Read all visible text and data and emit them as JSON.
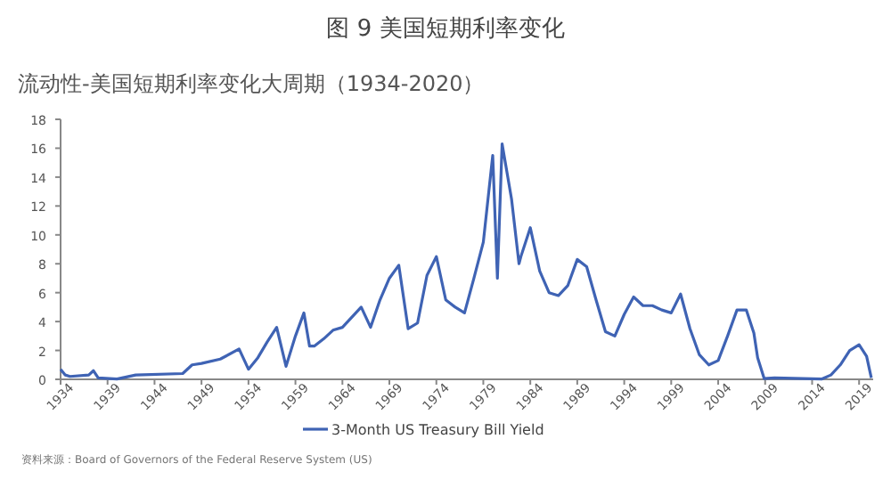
{
  "chart_data": {
    "type": "line",
    "title": "图 9 美国短期利率变化",
    "subtitle": "流动性-美国短期利率变化大周期（1934-2020）",
    "x": [
      1934,
      1934.5,
      1935,
      1937,
      1937.5,
      1938,
      1940,
      1942,
      1947,
      1948,
      1949,
      1951,
      1953,
      1954,
      1955,
      1956,
      1957,
      1958,
      1959,
      1959.9,
      1960.5,
      1961,
      1962,
      1963,
      1964,
      1966,
      1967,
      1968,
      1969,
      1970,
      1971,
      1972,
      1973,
      1974,
      1975,
      1976,
      1977,
      1978,
      1979,
      1980,
      1980.5,
      1981,
      1982,
      1982.8,
      1983,
      1984,
      1985,
      1986,
      1987,
      1988,
      1989,
      1990,
      1991,
      1992,
      1993,
      1994,
      1995,
      1996,
      1997,
      1998,
      1999,
      2000,
      2001,
      2002,
      2003,
      2004,
      2005,
      2006,
      2007,
      2007.8,
      2008.2,
      2008.9,
      2010,
      2015,
      2016,
      2017,
      2018,
      2019,
      2019.8,
      2020.3
    ],
    "series": [
      {
        "name": "3-Month US Treasury Bill Yield",
        "color": "#3f63b4",
        "values": [
          0.7,
          0.3,
          0.2,
          0.3,
          0.6,
          0.1,
          0.02,
          0.3,
          0.4,
          1.0,
          1.1,
          1.4,
          2.1,
          0.7,
          1.5,
          2.6,
          3.6,
          0.9,
          3.0,
          4.6,
          2.3,
          2.3,
          2.8,
          3.4,
          3.6,
          5.0,
          3.6,
          5.5,
          7.0,
          7.9,
          3.5,
          3.9,
          7.2,
          8.5,
          5.5,
          5.0,
          4.6,
          7.0,
          9.5,
          15.5,
          7.0,
          16.3,
          12.5,
          8.0,
          8.5,
          10.5,
          7.5,
          6.0,
          5.8,
          6.5,
          8.3,
          7.8,
          5.5,
          3.3,
          3.0,
          4.5,
          5.7,
          5.1,
          5.1,
          4.8,
          4.6,
          5.9,
          3.5,
          1.7,
          1.0,
          1.3,
          3.0,
          4.8,
          4.8,
          3.2,
          1.5,
          0.05,
          0.1,
          0.02,
          0.3,
          1.0,
          2.0,
          2.4,
          1.6,
          0.1
        ]
      }
    ],
    "xlim": [
      1934,
      2020.5
    ],
    "xticks": [
      1934,
      1939,
      1944,
      1949,
      1954,
      1959,
      1964,
      1969,
      1974,
      1979,
      1984,
      1989,
      1994,
      1999,
      2004,
      2009,
      2014,
      2019
    ],
    "ylim": [
      0,
      18
    ],
    "yticks": [
      0,
      2,
      4,
      6,
      8,
      10,
      12,
      14,
      16,
      18
    ],
    "legend": "bottom",
    "annotations": [
      "资料来源：Board of Governors of the Federal Reserve System (US)"
    ]
  }
}
